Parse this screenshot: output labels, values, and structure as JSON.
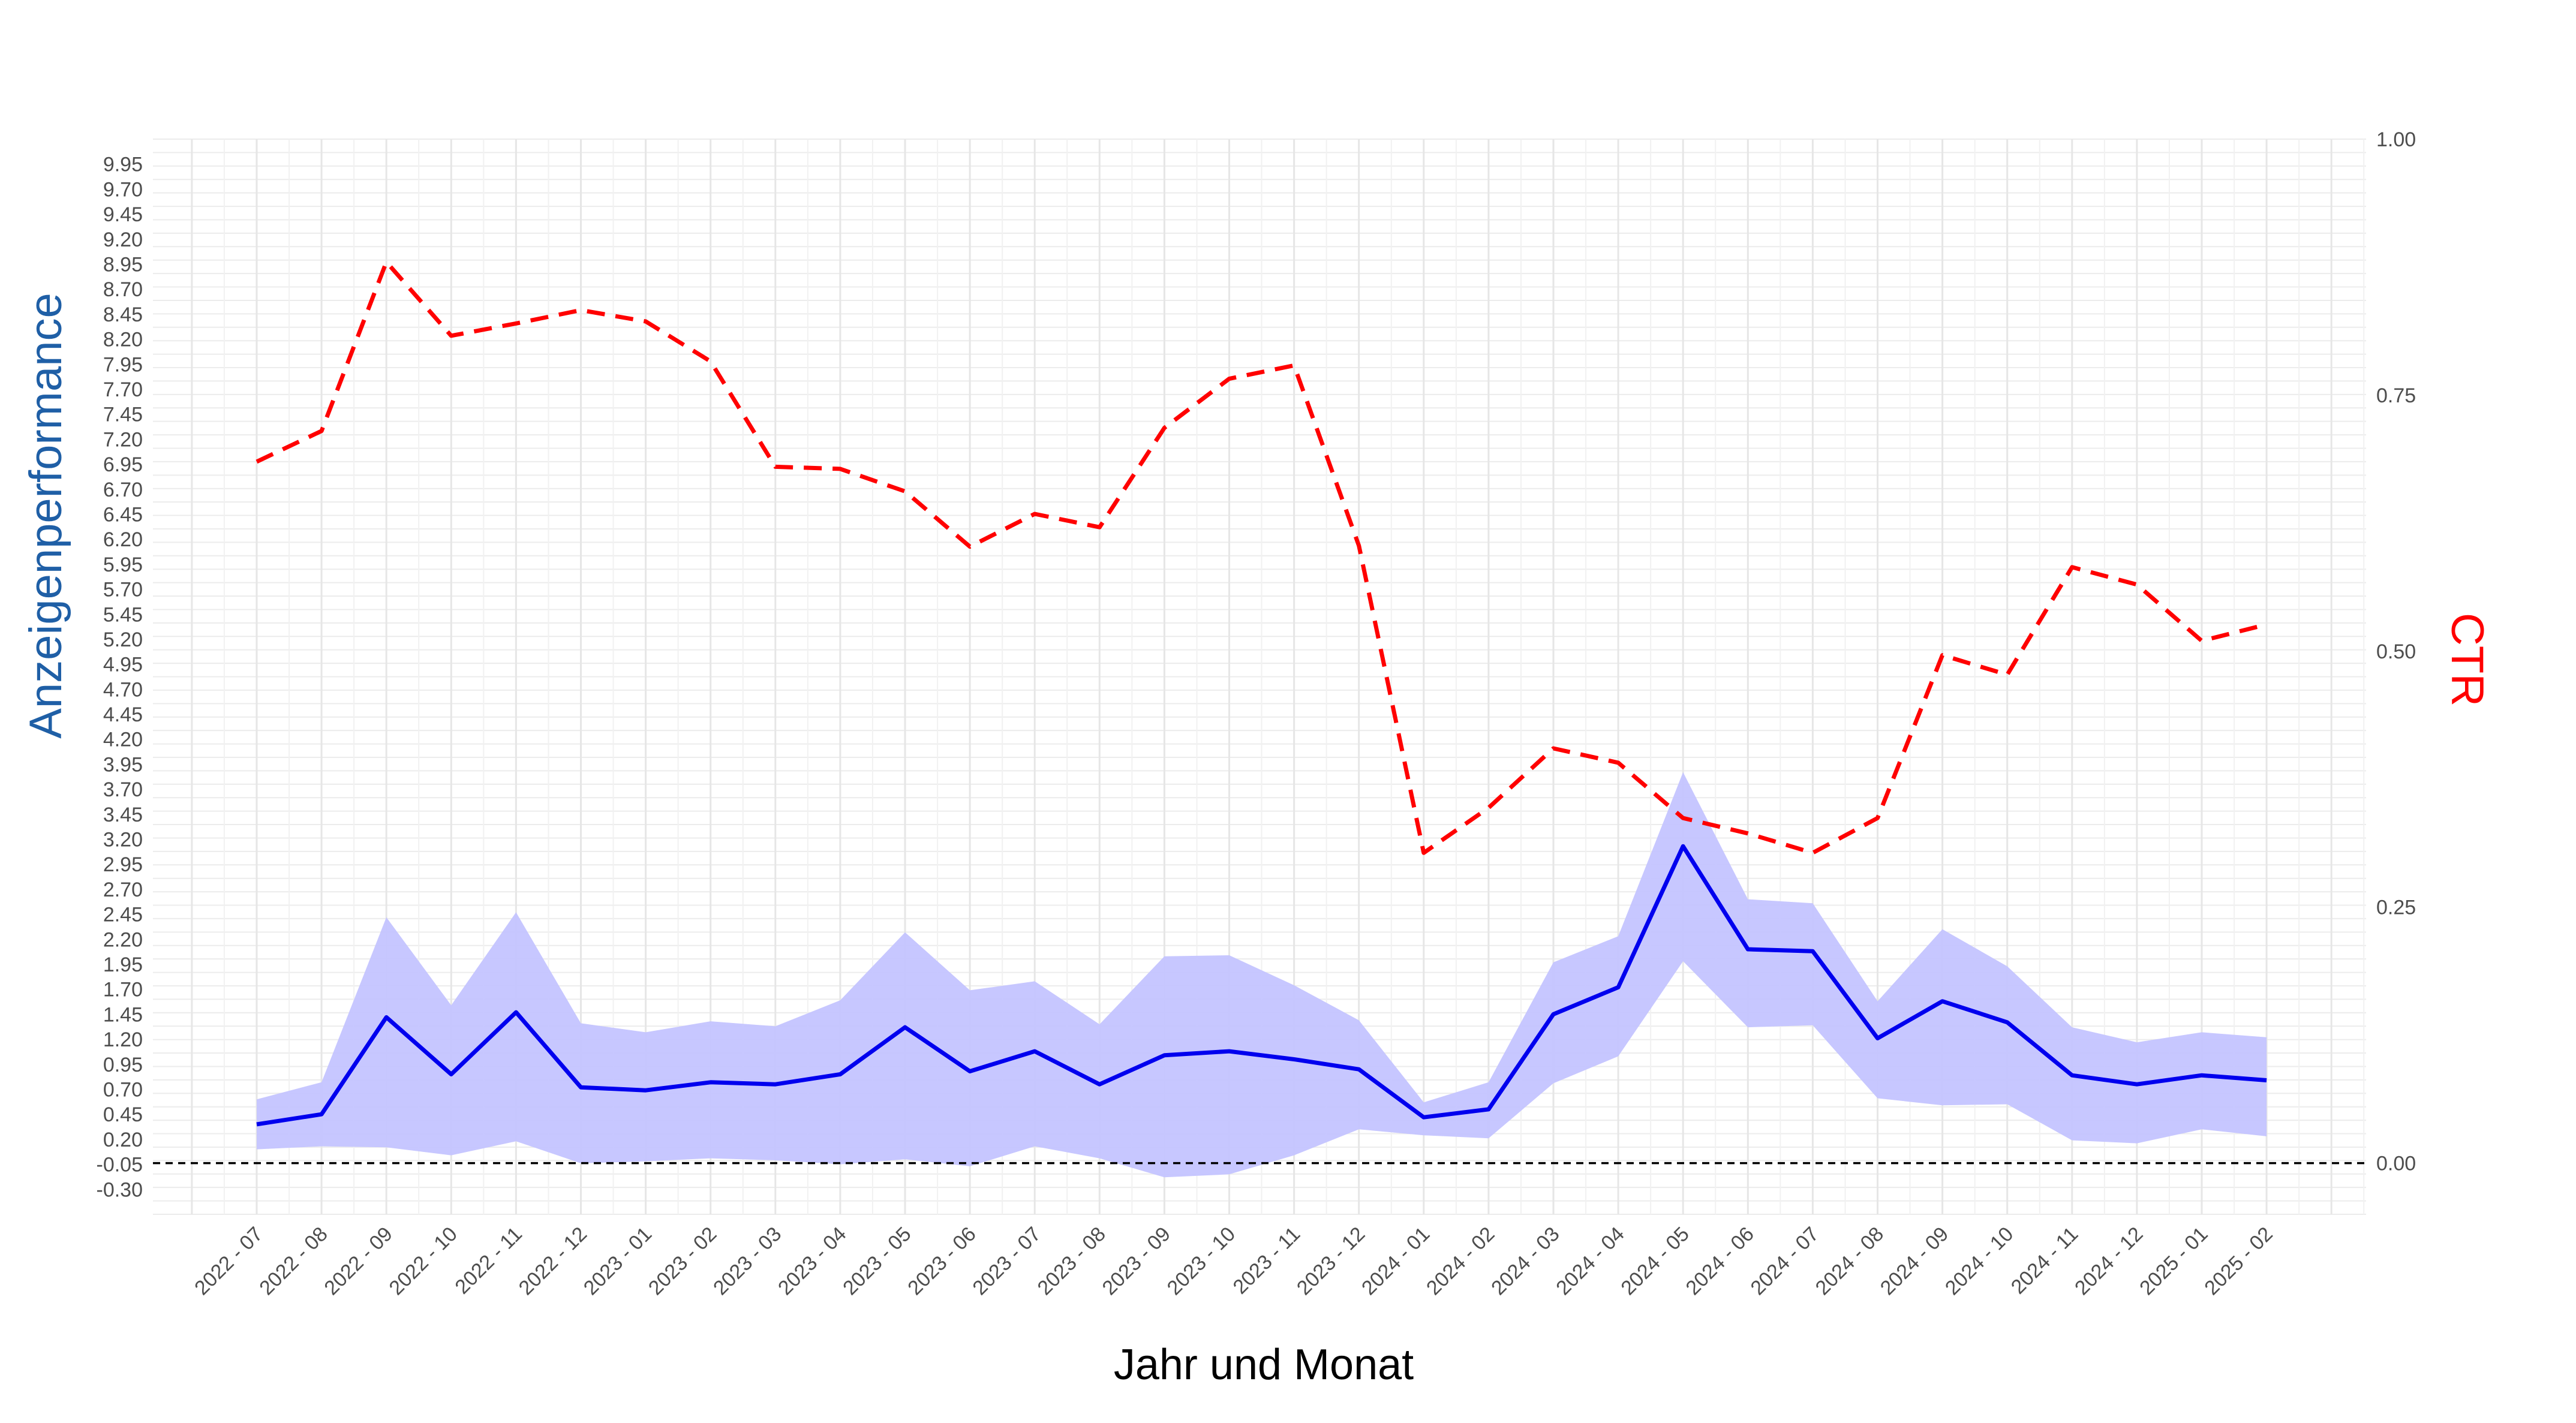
{
  "chart_data": {
    "type": "line",
    "xlabel": "Jahr und Monat",
    "ylabel_left": "Anzeigenperformance",
    "ylabel_right": "CTR",
    "categories": [
      "2022 - 07",
      "2022 - 08",
      "2022 - 09",
      "2022 - 10",
      "2022 - 11",
      "2022 - 12",
      "2023 - 01",
      "2023 - 02",
      "2023 - 03",
      "2023 - 04",
      "2023 - 05",
      "2023 - 06",
      "2023 - 07",
      "2023 - 08",
      "2023 - 09",
      "2023 - 10",
      "2023 - 11",
      "2023 - 12",
      "2024 - 01",
      "2024 - 02",
      "2024 - 03",
      "2024 - 04",
      "2024 - 05",
      "2024 - 06",
      "2024 - 07",
      "2024 - 08",
      "2024 - 09",
      "2024 - 10",
      "2024 - 11",
      "2024 - 12",
      "2025 - 01",
      "2025 - 02"
    ],
    "left_axis": {
      "ticks": [
        "9.95",
        "9.70",
        "9.45",
        "9.20",
        "8.95",
        "8.70",
        "8.45",
        "8.20",
        "7.95",
        "7.70",
        "7.45",
        "7.20",
        "6.95",
        "6.70",
        "6.45",
        "6.20",
        "5.95",
        "5.70",
        "5.45",
        "5.20",
        "4.95",
        "4.70",
        "4.45",
        "4.20",
        "3.95",
        "3.70",
        "3.45",
        "3.20",
        "2.95",
        "2.70",
        "2.45",
        "2.20",
        "1.95",
        "1.70",
        "1.45",
        "1.20",
        "0.95",
        "0.70",
        "0.45",
        "0.20",
        "-0.05",
        "-0.30"
      ],
      "ylim": [
        -0.55,
        10.2
      ]
    },
    "right_axis": {
      "ticks": [
        "1.00",
        "0.75",
        "0.50",
        "0.25",
        "0.00"
      ],
      "ylim": [
        -0.05,
        1.0
      ]
    },
    "reference_line": {
      "axis": "right",
      "y": 0.0,
      "style": "dashed",
      "color": "#000000"
    },
    "series": [
      {
        "axis": "left",
        "style": "solid",
        "color": "#0000ee",
        "values": [
          0.35,
          0.45,
          1.42,
          0.85,
          1.47,
          0.72,
          0.69,
          0.77,
          0.75,
          0.85,
          1.32,
          0.88,
          1.08,
          0.75,
          1.04,
          1.08,
          1.0,
          0.9,
          0.42,
          0.5,
          1.45,
          1.72,
          3.13,
          2.1,
          2.08,
          1.21,
          1.58,
          1.37,
          0.84,
          0.75,
          0.84,
          0.79
        ]
      },
      {
        "axis": "left",
        "style": "band",
        "color": "#c4c4ff",
        "lower": [
          0.1,
          0.13,
          0.12,
          0.04,
          0.18,
          -0.04,
          -0.02,
          0.01,
          -0.01,
          -0.05,
          0.0,
          -0.07,
          0.13,
          0.01,
          -0.18,
          -0.15,
          0.04,
          0.3,
          0.24,
          0.21,
          0.76,
          1.03,
          1.98,
          1.32,
          1.34,
          0.61,
          0.54,
          0.55,
          0.19,
          0.16,
          0.3,
          0.23
        ],
        "upper": [
          0.6,
          0.77,
          2.42,
          1.54,
          2.47,
          1.36,
          1.27,
          1.38,
          1.33,
          1.59,
          2.27,
          1.69,
          1.78,
          1.35,
          2.03,
          2.04,
          1.74,
          1.39,
          0.57,
          0.77,
          1.97,
          2.23,
          3.87,
          2.6,
          2.56,
          1.58,
          2.3,
          1.93,
          1.32,
          1.17,
          1.27,
          1.22
        ]
      },
      {
        "axis": "right",
        "style": "dashed",
        "color": "#ff0000",
        "values": [
          0.685,
          0.715,
          0.88,
          0.808,
          0.82,
          0.833,
          0.822,
          0.783,
          0.68,
          0.678,
          0.656,
          0.602,
          0.634,
          0.621,
          0.718,
          0.766,
          0.779,
          0.603,
          0.303,
          0.347,
          0.405,
          0.391,
          0.337,
          0.322,
          0.303,
          0.337,
          0.496,
          0.477,
          0.582,
          0.565,
          0.51,
          0.526
        ]
      }
    ],
    "grid": true,
    "legend": "none"
  }
}
